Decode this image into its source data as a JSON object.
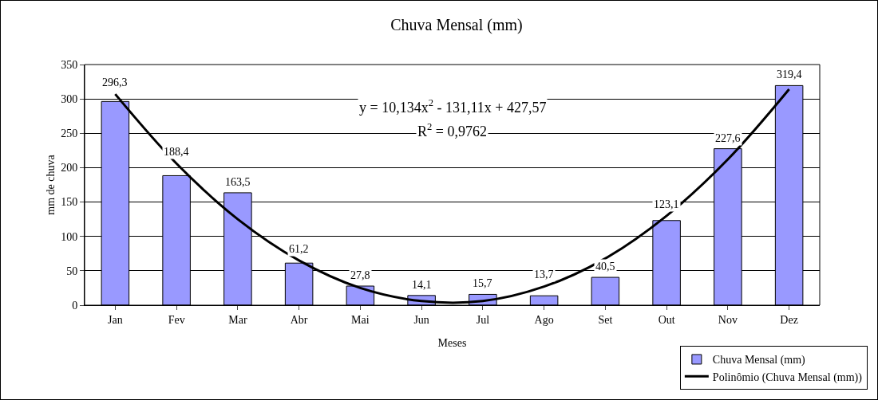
{
  "chart_data": {
    "type": "bar",
    "title": "Chuva Mensal (mm)",
    "xlabel": "Meses",
    "ylabel": "mm de chuva",
    "categories": [
      "Jan",
      "Fev",
      "Mar",
      "Abr",
      "Mai",
      "Jun",
      "Jul",
      "Ago",
      "Set",
      "Out",
      "Nov",
      "Dez"
    ],
    "series": [
      {
        "name": "Chuva Mensal (mm)",
        "color": "#9999ff",
        "values": [
          296.3,
          188.4,
          163.5,
          61.2,
          27.8,
          14.1,
          15.7,
          13.7,
          40.5,
          123.1,
          227.6,
          319.4
        ],
        "value_labels": [
          "296,3",
          "188,4",
          "163,5",
          "61,2",
          "27,8",
          "14,1",
          "15,7",
          "13,7",
          "40,5",
          "123,1",
          "227,6",
          "319,4"
        ]
      },
      {
        "name": "Polinômio (Chuva Mensal (mm))",
        "type": "line",
        "color": "#000000",
        "values": [
          307,
          206,
          125,
          65,
          25,
          6,
          6,
          27,
          68,
          130,
          212,
          314
        ]
      }
    ],
    "annotations": [
      "y = 10,134x$^{2}$ - 131,11x + 427,57",
      "R$^{2}$ = 0,9762"
    ],
    "ylim": [
      0,
      350
    ],
    "yticks": [
      0,
      50,
      100,
      150,
      200,
      250,
      300,
      350
    ],
    "grid": "y",
    "legend": "bottom right",
    "marker": "none",
    "line_style": "solid"
  }
}
